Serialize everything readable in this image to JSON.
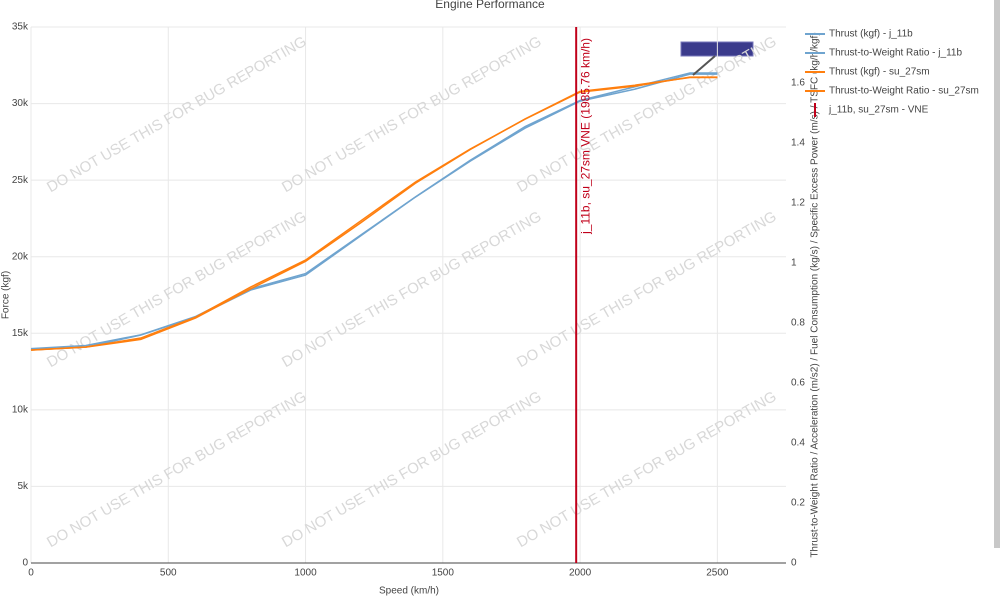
{
  "chart_data": {
    "type": "line",
    "title": "Engine Performance",
    "x_label": "Speed (km/h)",
    "y_label": "Force (kgf)",
    "y2_label": "Thrust-to-Weight Ratio / Acceleration (m/s2) / Fuel Consumption (kg/s) / Specific Excess Power (m/s) / TSFC (kg/h/kgf)",
    "watermark": "DO NOT USE THIS FOR BUG REPORTING",
    "x": [
      0,
      200,
      400,
      600,
      800,
      1000,
      1200,
      1400,
      1600,
      1800,
      2000,
      2200,
      2400,
      2500
    ],
    "series": [
      {
        "name": "Thrust (kgf) - j_11b",
        "color": "#6fa4cf",
        "values": [
          14000,
          14200,
          14900,
          16100,
          17900,
          18900,
          21400,
          23900,
          26300,
          28500,
          30200,
          31100,
          32000,
          32000
        ]
      },
      {
        "name": "Thrust-to-Weight Ratio - j_11b",
        "color": "#6fa4cf",
        "axis": "y2",
        "values": [
          0.71,
          0.72,
          0.76,
          0.82,
          0.91,
          0.96,
          1.09,
          1.22,
          1.34,
          1.45,
          1.54,
          1.58,
          1.63,
          1.63
        ]
      },
      {
        "name": "Thrust (kgf) - su_27sm",
        "color": "#ff7f0e",
        "values": [
          13900,
          14100,
          14600,
          16000,
          17900,
          19700,
          22200,
          24800,
          27000,
          29000,
          30800,
          31200,
          31700,
          31700
        ]
      },
      {
        "name": "Thrust-to-Weight Ratio - su_27sm",
        "color": "#ff7f0e",
        "axis": "y2",
        "values": [
          0.71,
          0.72,
          0.75,
          0.82,
          0.92,
          1.01,
          1.14,
          1.27,
          1.38,
          1.48,
          1.57,
          1.59,
          1.62,
          1.62
        ]
      }
    ],
    "vline": {
      "name": "j_11b, su_27sm - VNE",
      "x": 1985.76,
      "label": "j_11b, su_27sm VNE (1985.76 km/h)",
      "color": "#c0001a"
    },
    "xlim": [
      0,
      2750
    ],
    "xticks": [
      0,
      500,
      1000,
      1500,
      2000,
      2500
    ],
    "ylim": [
      0,
      35000
    ],
    "yticks": [
      0,
      {
        "value": 5000,
        "label": "5k"
      },
      {
        "value": 10000,
        "label": "10k"
      },
      {
        "value": 15000,
        "label": "15k"
      },
      {
        "value": 20000,
        "label": "20k"
      },
      {
        "value": 25000,
        "label": "25k"
      },
      {
        "value": 30000,
        "label": "30k"
      },
      {
        "value": 35000,
        "label": "35k"
      }
    ],
    "y2lim": [
      0,
      1.787
    ],
    "y2ticks": [
      0,
      0.2,
      0.4,
      0.6,
      0.8,
      1,
      1.2,
      1.4,
      1.6
    ],
    "grid": true
  }
}
